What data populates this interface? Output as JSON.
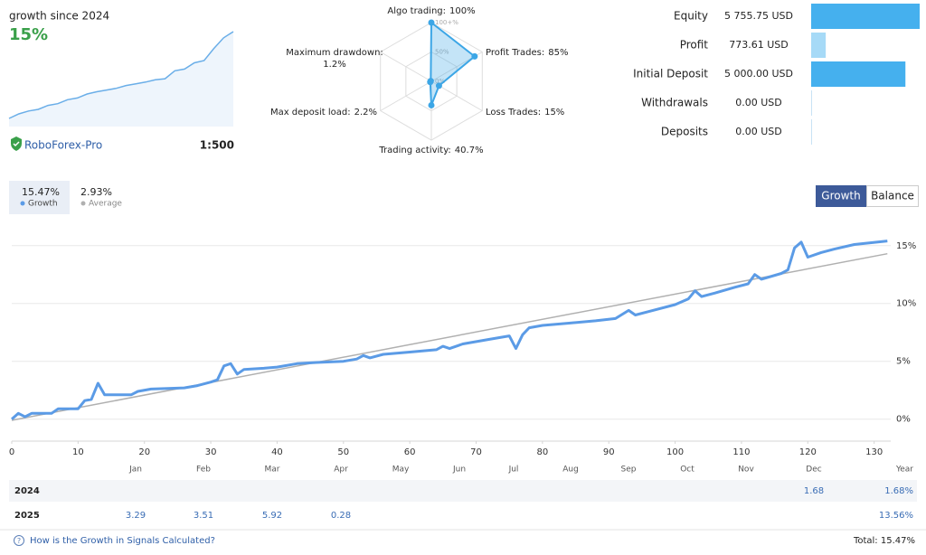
{
  "summary": {
    "label": "growth since 2024",
    "value": "15%",
    "broker": "RoboForex-Pro",
    "leverage": "1:500"
  },
  "mini_chart": {
    "type": "area",
    "color": "#6aaee8",
    "values": [
      0,
      0.8,
      1.3,
      1.6,
      2.3,
      2.6,
      3.3,
      3.6,
      4.3,
      4.7,
      5.0,
      5.3,
      5.8,
      6.1,
      6.4,
      6.8,
      7.0,
      8.4,
      8.7,
      9.8,
      10.2,
      12.3,
      14.2,
      15.3
    ]
  },
  "radar": {
    "type": "radar",
    "color": "#3ca6e6",
    "axes": [
      {
        "name": "Algo trading:",
        "value_label": "100%",
        "value": 100
      },
      {
        "name": "Profit Trades:",
        "value_label": "85%",
        "value": 85
      },
      {
        "name": "Loss Trades:",
        "value_label": "15%",
        "value": 15
      },
      {
        "name": "Trading activity:",
        "value_label": "40.7%",
        "value": 40.7
      },
      {
        "name": "Max deposit load:",
        "value_label": "2.2%",
        "value": 2.2
      },
      {
        "name": "Maximum drawdown:",
        "value_label": "1.2%",
        "value": 1.2
      }
    ],
    "ticks": [
      {
        "value": 0,
        "label": "0%"
      },
      {
        "value": 50,
        "label": "50%"
      },
      {
        "value": 100,
        "label": "100+%"
      }
    ]
  },
  "stats": {
    "xlim": [
      0,
      5755.75
    ],
    "rows": [
      {
        "label": "Equity",
        "value": 5755.75,
        "value_label": "5 755.75 USD",
        "color": "#45b0ee"
      },
      {
        "label": "Profit",
        "value": 773.61,
        "value_label": "773.61 USD",
        "color": "#a6daf7"
      },
      {
        "label": "Initial Deposit",
        "value": 5000,
        "value_label": "5 000.00 USD",
        "color": "#45b0ee"
      },
      {
        "label": "Withdrawals",
        "value": 0,
        "value_label": "0.00 USD",
        "color": "#c9e3f5"
      },
      {
        "label": "Deposits",
        "value": 0,
        "value_label": "0.00 USD",
        "color": "#c9e3f5"
      }
    ]
  },
  "tabs": {
    "growth": "15.47%",
    "average": "2.93%"
  },
  "view_buttons": [
    "Growth",
    "Balance"
  ],
  "chart_data": {
    "type": "line",
    "xlim": [
      0,
      132.5
    ],
    "ylim": [
      -1.9,
      16.7
    ],
    "xticks": [
      0,
      10,
      20,
      30,
      40,
      50,
      60,
      70,
      80,
      90,
      100,
      110,
      120,
      130
    ],
    "yticks": [
      {
        "value": 0,
        "label": "0%"
      },
      {
        "value": 5,
        "label": "5%"
      },
      {
        "value": 10,
        "label": "10%"
      },
      {
        "value": 15,
        "label": "15%"
      }
    ],
    "grid": true,
    "series": [
      {
        "name": "Growth",
        "color": "#5b9be6",
        "x": [
          0,
          1,
          2,
          3,
          6,
          7,
          10,
          11,
          12,
          13,
          14,
          18,
          19,
          21,
          26,
          28,
          30,
          31,
          32,
          33,
          34,
          35,
          38,
          40,
          43,
          46,
          50,
          52,
          53,
          54,
          56,
          60,
          64,
          65,
          66,
          68,
          72,
          75,
          76,
          77,
          78,
          80,
          84,
          88,
          91,
          93,
          94,
          96,
          100,
          102,
          103,
          104,
          106,
          109,
          111,
          112,
          113,
          116,
          117,
          118,
          119,
          120,
          122,
          124,
          127,
          132
        ],
        "values": [
          0,
          0.5,
          0.2,
          0.5,
          0.5,
          0.9,
          0.9,
          1.6,
          1.7,
          3.1,
          2.1,
          2.1,
          2.4,
          2.6,
          2.7,
          2.9,
          3.2,
          3.4,
          4.6,
          4.8,
          3.9,
          4.3,
          4.4,
          4.5,
          4.8,
          4.9,
          5.0,
          5.2,
          5.5,
          5.3,
          5.6,
          5.8,
          6.0,
          6.3,
          6.1,
          6.5,
          6.9,
          7.2,
          6.1,
          7.3,
          7.9,
          8.1,
          8.3,
          8.5,
          8.7,
          9.4,
          9.0,
          9.3,
          9.9,
          10.4,
          11.1,
          10.6,
          10.9,
          11.4,
          11.7,
          12.5,
          12.1,
          12.6,
          12.9,
          14.8,
          15.3,
          14.0,
          14.4,
          14.7,
          15.1,
          15.4
        ]
      },
      {
        "name": "Average",
        "color": "#b0b0b0",
        "x": [
          0,
          132
        ],
        "values": [
          -0.1,
          14.3
        ]
      }
    ]
  },
  "table": {
    "header": [
      "Jan",
      "Feb",
      "Mar",
      "Apr",
      "May",
      "Jun",
      "Jul",
      "Aug",
      "Sep",
      "Oct",
      "Nov",
      "Dec",
      "Year"
    ],
    "rows": [
      {
        "label": "2024",
        "cells": [
          null,
          null,
          null,
          null,
          null,
          null,
          null,
          null,
          null,
          null,
          null,
          "1.68",
          "1.68%"
        ]
      },
      {
        "label": "2025",
        "cells": [
          "3.29",
          "3.51",
          "5.92",
          "0.28",
          null,
          null,
          null,
          null,
          null,
          null,
          null,
          null,
          "13.56%"
        ]
      }
    ]
  },
  "footer": {
    "link": "How is the Growth in Signals Calculated?",
    "total": "Total: 15.47%"
  }
}
